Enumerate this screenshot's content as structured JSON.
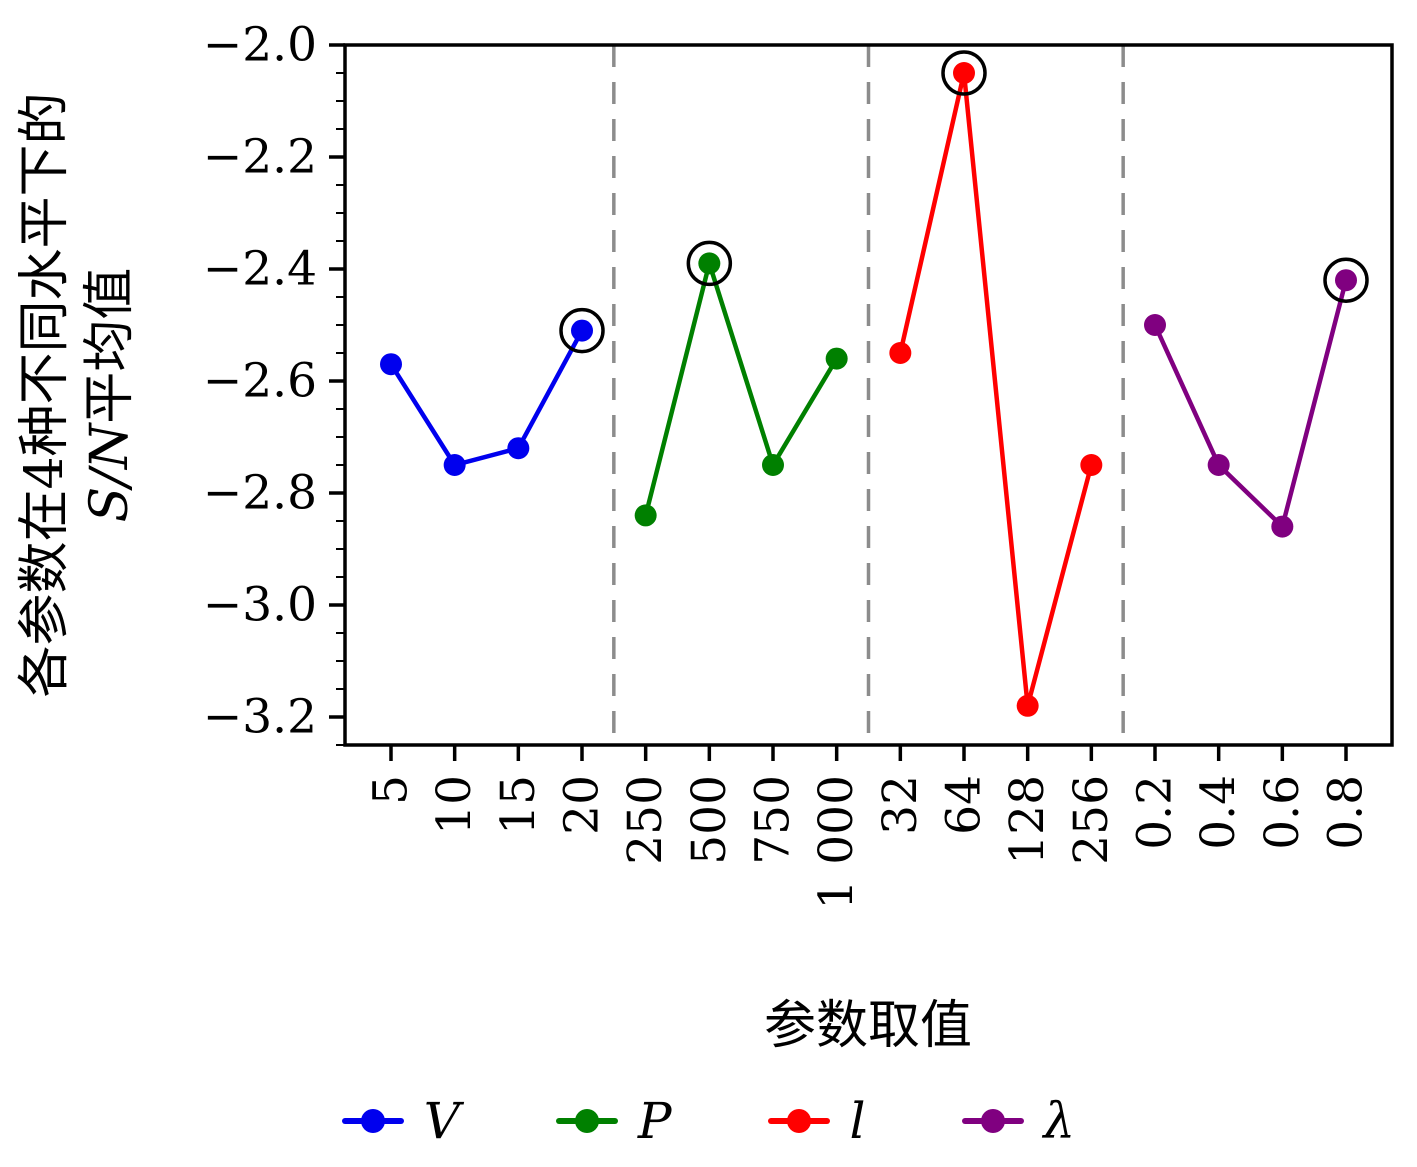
{
  "chart_data": {
    "type": "line",
    "title": "",
    "xlabel": "参数取值",
    "ylabel_line1": "各参数在4种不同水平下的",
    "ylabel_math": "S/N",
    "ylabel_rest": "平均值",
    "ylim": [
      -3.25,
      -2.0
    ],
    "yticks": [
      -2.0,
      -2.2,
      -2.4,
      -2.6,
      -2.8,
      -3.0,
      -3.2
    ],
    "grid": "off",
    "legend_position": "bottom",
    "groups": [
      {
        "name": "V",
        "color": "#0000ee",
        "categories": [
          "5",
          "10",
          "15",
          "20"
        ],
        "values": [
          -2.57,
          -2.75,
          -2.72,
          -2.51
        ],
        "best_index": 3
      },
      {
        "name": "P",
        "color": "#008000",
        "categories": [
          "250",
          "500",
          "750",
          "1 000"
        ],
        "values": [
          -2.84,
          -2.39,
          -2.75,
          -2.56
        ],
        "best_index": 1
      },
      {
        "name": "l",
        "color": "#ff0000",
        "categories": [
          "32",
          "64",
          "128",
          "256"
        ],
        "values": [
          -2.55,
          -2.05,
          -3.18,
          -2.75
        ],
        "best_index": 1
      },
      {
        "name": "λ",
        "color": "#800080",
        "categories": [
          "0.2",
          "0.4",
          "0.6",
          "0.8"
        ],
        "values": [
          -2.5,
          -2.75,
          -2.86,
          -2.42
        ],
        "best_index": 3
      }
    ],
    "legend": [
      {
        "label": "V",
        "color": "#0000ee"
      },
      {
        "label": "P",
        "color": "#008000"
      },
      {
        "label": "l",
        "color": "#ff0000"
      },
      {
        "label": "λ",
        "color": "#800080"
      }
    ]
  }
}
